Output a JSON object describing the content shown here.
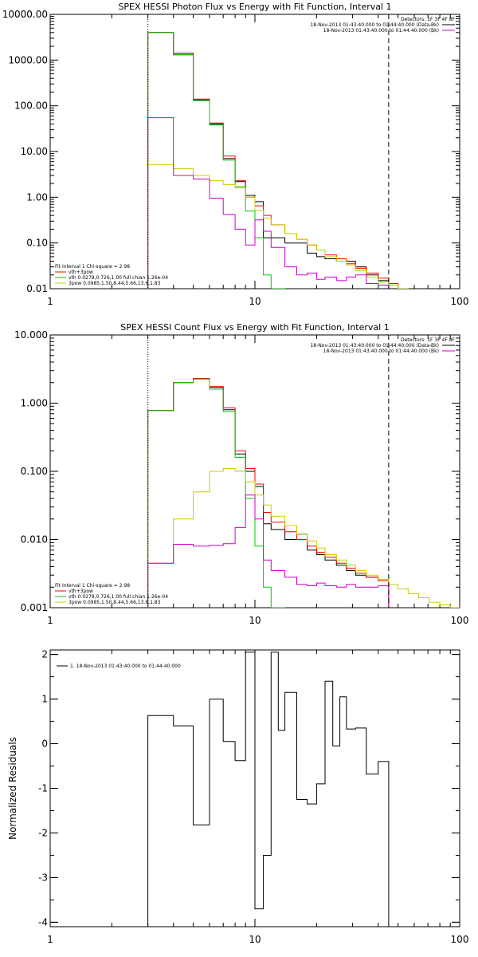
{
  "chart_data": [
    {
      "type": "line",
      "title": "SPEX HESSI Photon Flux vs Energy with Fit Function, Interval 1",
      "xscale": "log",
      "yscale": "log",
      "xlim": [
        1,
        100
      ],
      "ylim": [
        0.01,
        10000
      ],
      "xticks": [
        {
          "v": 1,
          "label": "1"
        },
        {
          "v": 10,
          "label": "10"
        },
        {
          "v": 100,
          "label": "100"
        }
      ],
      "yticks": [
        {
          "v": 0.01,
          "label": "0.01"
        },
        {
          "v": 0.1,
          "label": "0.10"
        },
        {
          "v": 1,
          "label": "1.00"
        },
        {
          "v": 10,
          "label": "10.00"
        },
        {
          "v": 100,
          "label": "100.00"
        },
        {
          "v": 1000,
          "label": "1000.00"
        },
        {
          "v": 10000,
          "label": "10000.00"
        }
      ],
      "vlines": [
        {
          "x": 3.0,
          "style": "dotted"
        },
        {
          "x": 45,
          "style": "dashed"
        }
      ],
      "legend_tr": {
        "detectors": "Detectors: 1F 3F 4F 8F",
        "items": [
          {
            "text": "18-Nov-2013 01:43:40.000 to 01:44:40.000 (Data-Bk)",
            "color": "#000000"
          },
          {
            "text": "18-Nov-2013 01:43:40.000 to 01:44:40.000 (Bk)",
            "color": "#cc00cc"
          }
        ]
      },
      "legend_bl": {
        "header": "Fit Interval  1    Chi-square = 2.98",
        "items": [
          {
            "text": "vth+3pow",
            "color": "#ff0000"
          },
          {
            "text": "vth 0.0278,0.726,1.00  full chian 1.26e-04",
            "color": "#00cc00"
          },
          {
            "text": "3pow 0.0985,1.50,8.44,5.66,13.6,1.83",
            "color": "#cccc00"
          }
        ]
      },
      "edges": [
        3.0,
        4.0,
        5.0,
        6.0,
        7.0,
        8.0,
        9.0,
        10.0,
        11.0,
        12.0,
        14.0,
        16.0,
        18.0,
        20.0,
        22.0,
        25.0,
        28.0,
        31.0,
        35.0,
        40.0,
        45.0,
        50.0,
        56.0
      ],
      "series": [
        {
          "color": "#000000",
          "values": [
            4000,
            1400,
            135,
            40,
            7,
            2.2,
            1.1,
            0.8,
            0.13,
            0.13,
            0.1,
            0.1,
            0.06,
            0.05,
            0.045,
            0.04,
            0.04,
            0.03,
            0.02,
            0.015,
            0,
            0
          ]
        },
        {
          "color": "#ff0000",
          "values": [
            4000,
            1300,
            140,
            42,
            8,
            2.3,
            1.0,
            0.65,
            0.4,
            0.25,
            0.16,
            0.12,
            0.09,
            0.07,
            0.055,
            0.045,
            0.035,
            0.028,
            0.022,
            0.017,
            0.013,
            0
          ]
        },
        {
          "color": "#00cc00",
          "values": [
            4000,
            1300,
            130,
            38,
            6.5,
            1.7,
            0.5,
            0.13,
            0.02,
            0.01,
            0,
            0,
            0,
            0,
            0,
            0,
            0,
            0,
            0,
            0,
            0,
            0
          ]
        },
        {
          "color": "#cccc00",
          "values": [
            5.2,
            4.2,
            3.0,
            2.3,
            1.9,
            1.6,
            1.0,
            0.52,
            0.35,
            0.25,
            0.16,
            0.12,
            0.09,
            0.07,
            0.05,
            0.04,
            0.033,
            0.025,
            0.018,
            0.014,
            0.012,
            0.01
          ]
        },
        {
          "color": "#cc00cc",
          "values": [
            55,
            3.0,
            2.5,
            0.95,
            0.42,
            0.2,
            0.09,
            0.32,
            0.18,
            0.08,
            0.03,
            0.02,
            0.022,
            0.016,
            0.018,
            0.015,
            0.018,
            0.02,
            0.013,
            0.012,
            0,
            0
          ]
        }
      ]
    },
    {
      "type": "line",
      "title": "SPEX HESSI Count Flux vs Energy with Fit Function, Interval 1",
      "xscale": "log",
      "yscale": "log",
      "xlim": [
        1,
        100
      ],
      "ylim": [
        0.001,
        10
      ],
      "xticks": [
        {
          "v": 1,
          "label": "1"
        },
        {
          "v": 10,
          "label": "10"
        },
        {
          "v": 100,
          "label": "100"
        }
      ],
      "yticks": [
        {
          "v": 0.001,
          "label": "0.001"
        },
        {
          "v": 0.01,
          "label": "0.010"
        },
        {
          "v": 0.1,
          "label": "0.100"
        },
        {
          "v": 1,
          "label": "1.000"
        },
        {
          "v": 10,
          "label": "10.000"
        }
      ],
      "vlines": [
        {
          "x": 3.0,
          "style": "dotted"
        },
        {
          "x": 45,
          "style": "dashed"
        }
      ],
      "legend_tr": {
        "detectors": "Detectors: 1F 3F 4F 8F",
        "items": [
          {
            "text": "18-Nov-2013 01:43:40.000 to 01:44:40.000 (Data-Bk)",
            "color": "#000000"
          },
          {
            "text": "18-Nov-2013 01:43:40.000 to 01:44:40.000 (Bk)",
            "color": "#cc00cc"
          }
        ]
      },
      "legend_bl": {
        "header": "Fit Interval  1    Chi-square = 2.98",
        "items": [
          {
            "text": "vth+3pow",
            "color": "#ff0000"
          },
          {
            "text": "vth 0.0278,0.726,1.00  full chian 1.26e-04",
            "color": "#00cc00"
          },
          {
            "text": "3pow 0.0985,1.50,8.44,5.66,13.6,1.83",
            "color": "#cccc00"
          }
        ]
      },
      "edges": [
        3.0,
        4.0,
        5.0,
        6.0,
        7.0,
        8.0,
        9.0,
        10.0,
        11.0,
        12.0,
        14.0,
        16.0,
        18.0,
        20.0,
        22.0,
        25.0,
        28.0,
        31.0,
        35.0,
        40.0,
        45.0,
        50.0,
        56.0,
        63.0,
        71.0,
        80.0,
        90.0,
        100.0
      ],
      "series": [
        {
          "color": "#000000",
          "values": [
            0.78,
            2.0,
            2.3,
            1.7,
            0.8,
            0.18,
            0.1,
            0.06,
            0.017,
            0.014,
            0.01,
            0.012,
            0.007,
            0.006,
            0.005,
            0.0042,
            0.0035,
            0.003,
            0.0028,
            0.0025,
            0,
            0,
            0,
            0,
            0,
            0,
            0
          ]
        },
        {
          "color": "#ff0000",
          "values": [
            0.78,
            2.0,
            2.3,
            1.75,
            0.85,
            0.2,
            0.11,
            0.065,
            0.025,
            0.018,
            0.013,
            0.01,
            0.008,
            0.0065,
            0.0055,
            0.0045,
            0.0038,
            0.0032,
            0.0028,
            0.0025,
            0,
            0,
            0,
            0,
            0,
            0,
            0
          ]
        },
        {
          "color": "#00cc00",
          "values": [
            0.78,
            2.0,
            2.25,
            1.6,
            0.75,
            0.16,
            0.04,
            0.008,
            0.002,
            0.001,
            0,
            0,
            0,
            0,
            0,
            0,
            0,
            0,
            0,
            0,
            0,
            0,
            0,
            0,
            0,
            0,
            0
          ]
        },
        {
          "color": "#cccc00",
          "values": [
            0.0045,
            0.02,
            0.05,
            0.1,
            0.11,
            0.1,
            0.07,
            0.045,
            0.032,
            0.022,
            0.016,
            0.012,
            0.0095,
            0.0075,
            0.006,
            0.005,
            0.0042,
            0.0035,
            0.003,
            0.0026,
            0.0022,
            0.0019,
            0.0016,
            0.0014,
            0.0012,
            0.0011,
            0.001
          ]
        },
        {
          "color": "#cc00cc",
          "values": [
            0.0045,
            0.0085,
            0.008,
            0.0082,
            0.0087,
            0.015,
            0.045,
            0.02,
            0.005,
            0.0035,
            0.0028,
            0.0022,
            0.0021,
            0.0023,
            0.0021,
            0.002,
            0.0022,
            0.002,
            0.002,
            0.0021,
            0,
            0,
            0,
            0,
            0,
            0,
            0
          ]
        }
      ]
    },
    {
      "type": "line",
      "title": "",
      "ylabel": "Normalized Residuals",
      "xscale": "log",
      "yscale": "linear",
      "xlim": [
        1,
        100
      ],
      "ylim": [
        -4.1,
        2.1
      ],
      "xticks": [
        {
          "v": 1,
          "label": "1"
        },
        {
          "v": 10,
          "label": "10"
        },
        {
          "v": 100,
          "label": "100"
        }
      ],
      "yticks": [
        {
          "v": -4,
          "label": "-4"
        },
        {
          "v": -3,
          "label": "-3"
        },
        {
          "v": -2,
          "label": "-2"
        },
        {
          "v": -1,
          "label": "-1"
        },
        {
          "v": 0,
          "label": "0"
        },
        {
          "v": 1,
          "label": "1"
        },
        {
          "v": 2,
          "label": "2"
        }
      ],
      "legend_tl": {
        "items": [
          {
            "text": "1. 18-Nov-2013 01:43:40.000 to 01:44:40.000",
            "color": "#000000"
          }
        ]
      },
      "edges": [
        3.0,
        4.0,
        5.0,
        6.0,
        7.0,
        8.0,
        9.0,
        10.0,
        11.0,
        12.0,
        13.0,
        14.0,
        16.0,
        18.0,
        20.0,
        22.0,
        24.0,
        26.0,
        28.0,
        31.0,
        35.0,
        40.0,
        45.0
      ],
      "series": [
        {
          "color": "#000000",
          "values": [
            0.63,
            0.4,
            -1.82,
            1.0,
            0.05,
            -0.38,
            2.05,
            -3.7,
            -2.5,
            2.05,
            0.3,
            1.15,
            -1.25,
            -1.35,
            -0.9,
            1.4,
            -0.05,
            1.05,
            0.33,
            0.35,
            -0.68,
            -0.4
          ],
          "baseline": -4.1
        }
      ]
    }
  ]
}
